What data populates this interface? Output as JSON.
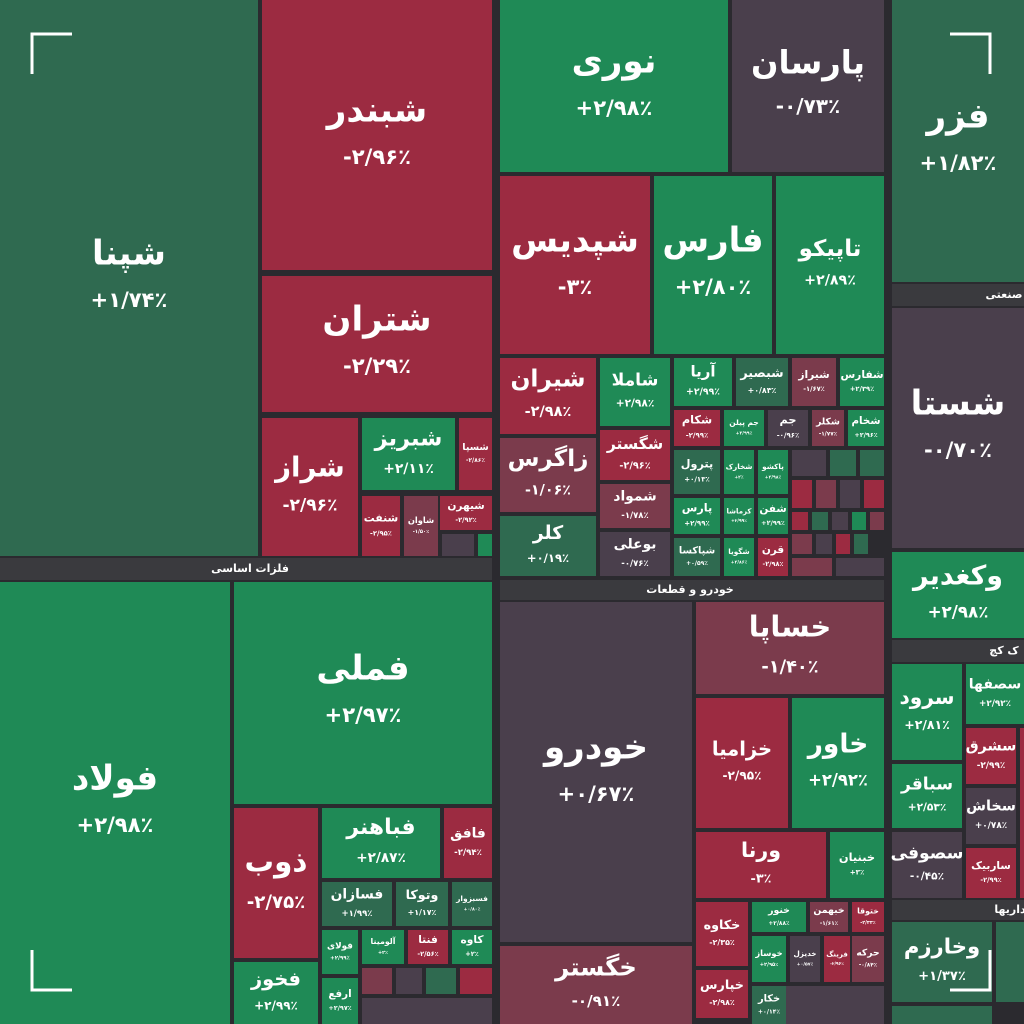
{
  "chart_data": {
    "type": "treemap",
    "groups": [
      "فلزات اساسی",
      "خودرو و قطعات",
      "صنعتی",
      "ک کچ",
      "داریها"
    ],
    "categories": [
      "شپنا",
      "شبندر",
      "شتران",
      "شراز",
      "شبریز",
      "شسپا",
      "شنفت",
      "شاوان",
      "شیهرن",
      "نوری",
      "پارسان",
      "فزر",
      "شپدیس",
      "فارس",
      "تاپیکو",
      "شستا",
      "شیران",
      "شاملا",
      "زاگرس",
      "کلر",
      "شگستر",
      "شمواد",
      "بوعلی",
      "آریا",
      "شبصیر",
      "شیراز",
      "شفارس",
      "شکام",
      "جم پیلن",
      "جم",
      "شکلر",
      "شخام",
      "پترول",
      "شخارک",
      "پاکشو",
      "پارس",
      "کرماشا",
      "شفن",
      "شپاکسا",
      "شگویا",
      "قرن",
      "فولاد",
      "فملی",
      "ذوب",
      "فباهنر",
      "فافق",
      "فسازان",
      "وتوکا",
      "فسبزوار",
      "فولای",
      "آلومینا",
      "فنتا",
      "کاوه",
      "ارفع",
      "فخوز",
      "خودرو",
      "خگستر",
      "خساپا",
      "خزامیا",
      "خاور",
      "ورنا",
      "خبنیان",
      "خکاوه",
      "خنور",
      "خبهمن",
      "ختوقا",
      "خوساز",
      "خدیزل",
      "فرینگ",
      "حرکه",
      "خپارس",
      "خکار",
      "وکغدیر",
      "سرود",
      "سصفها",
      "سشرق",
      "سباقر",
      "سخاش",
      "سصوفی",
      "ساربیک",
      "وخارزم"
    ],
    "values": [
      1.74,
      -2.96,
      -2.29,
      -2.96,
      2.11,
      -2.86,
      -2.95,
      -1.5,
      -2.92,
      2.98,
      -0.73,
      1.82,
      -3,
      2.8,
      2.89,
      -0.7,
      -2.98,
      2.98,
      -1.06,
      0.19,
      -2.96,
      -1.78,
      -0.76,
      2.99,
      0.83,
      -1.67,
      2.39,
      -2.99,
      2.99,
      -0.96,
      -1.77,
      2.96,
      0.13,
      2,
      2.98,
      2.99,
      2.99,
      2.99,
      0.59,
      2.86,
      -2.98,
      2.98,
      2.97,
      -2.75,
      2.87,
      -2.94,
      1.99,
      1.17,
      0.8,
      2.99,
      2,
      -2.56,
      2,
      2.97,
      2.99,
      0.67,
      -0.91,
      -1.4,
      -2.95,
      2.92,
      -3,
      3,
      -2.35,
      2.88,
      -1.61,
      -2.33,
      2.95,
      0.57,
      -2.96,
      -0.84,
      -2.98,
      0.14,
      2.98,
      2.81,
      2.92,
      -2.99,
      2.53,
      0.78,
      -0.45,
      -2.99,
      1.37
    ],
    "value_labels": [
      "+۱/۷۴٪",
      "-۲/۹۶٪",
      "-۲/۲۹٪",
      "-۲/۹۶٪",
      "+۲/۱۱٪",
      "-۲/۸۶٪",
      "-۲/۹۵٪",
      "-۱/۵۰٪",
      "-۲/۹۲٪",
      "+۲/۹۸٪",
      "-۰/۷۳٪",
      "+۱/۸۲٪",
      "-۳٪",
      "+۲/۸۰٪",
      "+۲/۸۹٪",
      "-۰/۷۰٪",
      "-۲/۹۸٪",
      "+۲/۹۸٪",
      "-۱/۰۶٪",
      "+۰/۱۹٪",
      "-۲/۹۶٪",
      "-۱/۷۸٪",
      "-۰/۷۶٪",
      "+۲/۹۹٪",
      "+۰/۸۳٪",
      "-۱/۶۷٪",
      "+۲/۳۹٪",
      "-۲/۹۹٪",
      "+۲/۹۹٪",
      "-۰/۹۶٪",
      "-۱/۷۷٪",
      "+۲/۹۶٪",
      "+۰/۱۳٪",
      "+۲٪",
      "+۲/۹۸٪",
      "+۲/۹۹٪",
      "+۲/۹۹٪",
      "+۲/۹۹٪",
      "+۰/۵۹٪",
      "+۲/۸۶٪",
      "-۲/۹۸٪",
      "+۲/۹۸٪",
      "+۲/۹۷٪",
      "-۲/۷۵٪",
      "+۲/۸۷٪",
      "-۲/۹۴٪",
      "+۱/۹۹٪",
      "+۱/۱۷٪",
      "+۰/۸۰٪",
      "+۲/۹۹٪",
      "+۲٪",
      "-۲/۵۶٪",
      "+۲٪",
      "+۲/۹۷٪",
      "+۲/۹۹٪",
      "+۰/۶۷٪",
      "-۰/۹۱٪",
      "-۱/۴۰٪",
      "-۲/۹۵٪",
      "+۲/۹۲٪",
      "-۳٪",
      "+۳٪",
      "-۲/۳۵٪",
      "+۲/۸۸٪",
      "-۱/۶۱٪",
      "-۲/۳۳٪",
      "+۲/۹۵٪",
      "+۰/۵۷٪",
      "-۲/۹۶٪",
      "-۰/۸۴٪",
      "-۲/۹۸٪",
      "+۰/۱۴٪",
      "+۲/۹۸٪",
      "+۲/۸۱٪",
      "+۲/۹۲٪",
      "-۲/۹۹٪",
      "+۲/۵۳٪",
      "+۰/۷۸٪",
      "-۰/۴۵٪",
      "-۲/۹۹٪",
      "+۱/۳۷٪"
    ]
  }
}
